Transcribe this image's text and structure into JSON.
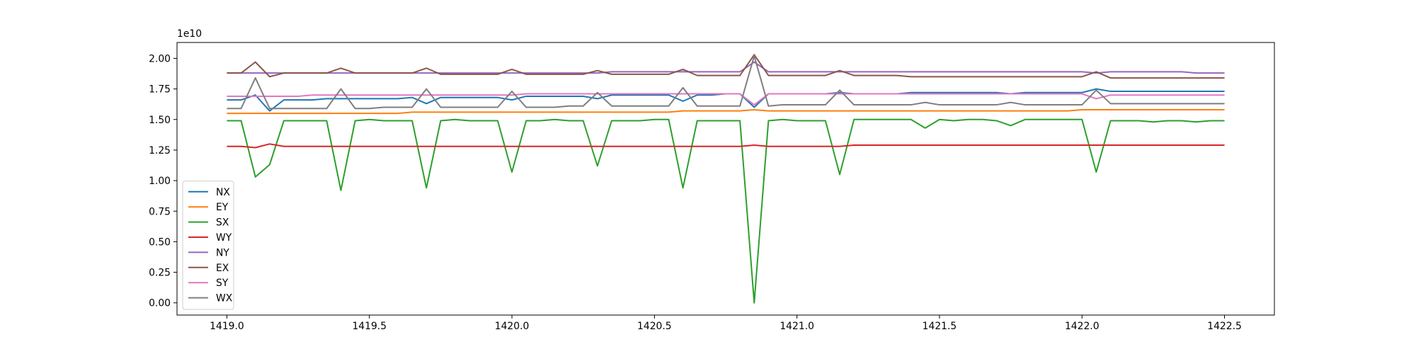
{
  "chart_data": {
    "type": "line",
    "y_offset_label": "1e10",
    "x": [
      1419,
      1419.05,
      1419.1,
      1419.15,
      1419.2,
      1419.25,
      1419.3,
      1419.35,
      1419.4,
      1419.45,
      1419.5,
      1419.55,
      1419.6,
      1419.65,
      1419.7,
      1419.75,
      1419.8,
      1419.85,
      1419.9,
      1419.95,
      1420,
      1420.05,
      1420.1,
      1420.15,
      1420.2,
      1420.25,
      1420.3,
      1420.35,
      1420.4,
      1420.45,
      1420.5,
      1420.55,
      1420.6,
      1420.65,
      1420.7,
      1420.75,
      1420.8,
      1420.85,
      1420.9,
      1420.95,
      1421,
      1421.05,
      1421.1,
      1421.15,
      1421.2,
      1421.25,
      1421.3,
      1421.35,
      1421.4,
      1421.45,
      1421.5,
      1421.55,
      1421.6,
      1421.65,
      1421.7,
      1421.75,
      1421.8,
      1421.85,
      1421.9,
      1421.95,
      1422,
      1422.05,
      1422.1,
      1422.15,
      1422.2,
      1422.25,
      1422.3,
      1422.35,
      1422.4,
      1422.45,
      1422.5
    ],
    "series": [
      {
        "name": "NX",
        "color": "#1f77b4",
        "values": [
          16600000000.0,
          16600000000.0,
          17000000000.0,
          15700000000.0,
          16600000000.0,
          16600000000.0,
          16600000000.0,
          16700000000.0,
          16700000000.0,
          16700000000.0,
          16700000000.0,
          16700000000.0,
          16700000000.0,
          16800000000.0,
          16300000000.0,
          16800000000.0,
          16800000000.0,
          16800000000.0,
          16800000000.0,
          16800000000.0,
          16600000000.0,
          16900000000.0,
          16900000000.0,
          16900000000.0,
          16900000000.0,
          16900000000.0,
          16700000000.0,
          17000000000.0,
          17000000000.0,
          17000000000.0,
          17000000000.0,
          17000000000.0,
          16500000000.0,
          17000000000.0,
          17000000000.0,
          17100000000.0,
          17100000000.0,
          16000000000.0,
          17100000000.0,
          17100000000.0,
          17100000000.0,
          17100000000.0,
          17100000000.0,
          17200000000.0,
          17100000000.0,
          17100000000.0,
          17100000000.0,
          17100000000.0,
          17200000000.0,
          17200000000.0,
          17200000000.0,
          17200000000.0,
          17200000000.0,
          17200000000.0,
          17200000000.0,
          17100000000.0,
          17200000000.0,
          17200000000.0,
          17200000000.0,
          17200000000.0,
          17200000000.0,
          17500000000.0,
          17300000000.0,
          17300000000.0,
          17300000000.0,
          17300000000.0,
          17300000000.0,
          17300000000.0,
          17300000000.0,
          17300000000.0,
          17300000000.0
        ]
      },
      {
        "name": "EY",
        "color": "#ff7f0e",
        "values": [
          15500000000.0,
          15500000000.0,
          15500000000.0,
          15500000000.0,
          15500000000.0,
          15500000000.0,
          15500000000.0,
          15500000000.0,
          15500000000.0,
          15500000000.0,
          15500000000.0,
          15500000000.0,
          15500000000.0,
          15600000000.0,
          15600000000.0,
          15600000000.0,
          15600000000.0,
          15600000000.0,
          15600000000.0,
          15600000000.0,
          15600000000.0,
          15600000000.0,
          15600000000.0,
          15600000000.0,
          15600000000.0,
          15600000000.0,
          15600000000.0,
          15600000000.0,
          15600000000.0,
          15600000000.0,
          15600000000.0,
          15600000000.0,
          15700000000.0,
          15700000000.0,
          15700000000.0,
          15700000000.0,
          15700000000.0,
          15800000000.0,
          15700000000.0,
          15700000000.0,
          15700000000.0,
          15700000000.0,
          15700000000.0,
          15700000000.0,
          15700000000.0,
          15700000000.0,
          15700000000.0,
          15700000000.0,
          15700000000.0,
          15700000000.0,
          15700000000.0,
          15700000000.0,
          15700000000.0,
          15700000000.0,
          15700000000.0,
          15700000000.0,
          15700000000.0,
          15700000000.0,
          15700000000.0,
          15700000000.0,
          15800000000.0,
          15800000000.0,
          15800000000.0,
          15800000000.0,
          15800000000.0,
          15800000000.0,
          15800000000.0,
          15800000000.0,
          15800000000.0,
          15800000000.0,
          15800000000.0
        ]
      },
      {
        "name": "SX",
        "color": "#2ca02c",
        "values": [
          14900000000.0,
          14900000000.0,
          10300000000.0,
          11300000000.0,
          14900000000.0,
          14900000000.0,
          14900000000.0,
          14900000000.0,
          9200000000.0,
          14900000000.0,
          15000000000.0,
          14900000000.0,
          14900000000.0,
          14900000000.0,
          9400000000.0,
          14900000000.0,
          15000000000.0,
          14900000000.0,
          14900000000.0,
          14900000000.0,
          10700000000.0,
          14900000000.0,
          14900000000.0,
          15000000000.0,
          14900000000.0,
          14900000000.0,
          11200000000.0,
          14900000000.0,
          14900000000.0,
          14900000000.0,
          15000000000.0,
          15000000000.0,
          9400000000.0,
          14900000000.0,
          14900000000.0,
          14900000000.0,
          14900000000.0,
          0,
          14900000000.0,
          15000000000.0,
          14900000000.0,
          14900000000.0,
          14900000000.0,
          10500000000.0,
          15000000000.0,
          15000000000.0,
          15000000000.0,
          15000000000.0,
          15000000000.0,
          14300000000.0,
          15000000000.0,
          14900000000.0,
          15000000000.0,
          15000000000.0,
          14900000000.0,
          14500000000.0,
          15000000000.0,
          15000000000.0,
          15000000000.0,
          15000000000.0,
          15000000000.0,
          10700000000.0,
          14900000000.0,
          14900000000.0,
          14900000000.0,
          14800000000.0,
          14900000000.0,
          14900000000.0,
          14800000000.0,
          14900000000.0,
          14900000000.0
        ]
      },
      {
        "name": "WY",
        "color": "#d62728",
        "values": [
          12800000000.0,
          12800000000.0,
          12700000000.0,
          13000000000.0,
          12800000000.0,
          12800000000.0,
          12800000000.0,
          12800000000.0,
          12800000000.0,
          12800000000.0,
          12800000000.0,
          12800000000.0,
          12800000000.0,
          12800000000.0,
          12800000000.0,
          12800000000.0,
          12800000000.0,
          12800000000.0,
          12800000000.0,
          12800000000.0,
          12800000000.0,
          12800000000.0,
          12800000000.0,
          12800000000.0,
          12800000000.0,
          12800000000.0,
          12800000000.0,
          12800000000.0,
          12800000000.0,
          12800000000.0,
          12800000000.0,
          12800000000.0,
          12800000000.0,
          12800000000.0,
          12800000000.0,
          12800000000.0,
          12800000000.0,
          12900000000.0,
          12800000000.0,
          12800000000.0,
          12800000000.0,
          12800000000.0,
          12800000000.0,
          12800000000.0,
          12900000000.0,
          12900000000.0,
          12900000000.0,
          12900000000.0,
          12900000000.0,
          12900000000.0,
          12900000000.0,
          12900000000.0,
          12900000000.0,
          12900000000.0,
          12900000000.0,
          12900000000.0,
          12900000000.0,
          12900000000.0,
          12900000000.0,
          12900000000.0,
          12900000000.0,
          12900000000.0,
          12900000000.0,
          12900000000.0,
          12900000000.0,
          12900000000.0,
          12900000000.0,
          12900000000.0,
          12900000000.0,
          12900000000.0,
          12900000000.0
        ]
      },
      {
        "name": "NY",
        "color": "#9467bd",
        "values": [
          18800000000.0,
          18800000000.0,
          18800000000.0,
          18800000000.0,
          18800000000.0,
          18800000000.0,
          18800000000.0,
          18800000000.0,
          18800000000.0,
          18800000000.0,
          18800000000.0,
          18800000000.0,
          18800000000.0,
          18800000000.0,
          18800000000.0,
          18800000000.0,
          18800000000.0,
          18800000000.0,
          18800000000.0,
          18800000000.0,
          18800000000.0,
          18800000000.0,
          18800000000.0,
          18800000000.0,
          18800000000.0,
          18800000000.0,
          18800000000.0,
          18900000000.0,
          18900000000.0,
          18900000000.0,
          18900000000.0,
          18900000000.0,
          18900000000.0,
          18900000000.0,
          18900000000.0,
          18900000000.0,
          18900000000.0,
          19700000000.0,
          18900000000.0,
          18900000000.0,
          18900000000.0,
          18900000000.0,
          18900000000.0,
          18900000000.0,
          18900000000.0,
          18900000000.0,
          18900000000.0,
          18900000000.0,
          18900000000.0,
          18900000000.0,
          18900000000.0,
          18900000000.0,
          18900000000.0,
          18900000000.0,
          18900000000.0,
          18900000000.0,
          18900000000.0,
          18900000000.0,
          18900000000.0,
          18900000000.0,
          18900000000.0,
          18800000000.0,
          18900000000.0,
          18900000000.0,
          18900000000.0,
          18900000000.0,
          18900000000.0,
          18900000000.0,
          18800000000.0,
          18800000000.0,
          18800000000.0
        ]
      },
      {
        "name": "EX",
        "color": "#8c564b",
        "values": [
          18800000000.0,
          18800000000.0,
          19700000000.0,
          18500000000.0,
          18800000000.0,
          18800000000.0,
          18800000000.0,
          18800000000.0,
          19200000000.0,
          18800000000.0,
          18800000000.0,
          18800000000.0,
          18800000000.0,
          18800000000.0,
          19200000000.0,
          18700000000.0,
          18700000000.0,
          18700000000.0,
          18700000000.0,
          18700000000.0,
          19100000000.0,
          18700000000.0,
          18700000000.0,
          18700000000.0,
          18700000000.0,
          18700000000.0,
          19000000000.0,
          18700000000.0,
          18700000000.0,
          18700000000.0,
          18700000000.0,
          18700000000.0,
          19100000000.0,
          18600000000.0,
          18600000000.0,
          18600000000.0,
          18600000000.0,
          20300000000.0,
          18600000000.0,
          18600000000.0,
          18600000000.0,
          18600000000.0,
          18600000000.0,
          19000000000.0,
          18600000000.0,
          18600000000.0,
          18600000000.0,
          18600000000.0,
          18500000000.0,
          18500000000.0,
          18500000000.0,
          18500000000.0,
          18500000000.0,
          18500000000.0,
          18500000000.0,
          18500000000.0,
          18500000000.0,
          18500000000.0,
          18500000000.0,
          18500000000.0,
          18500000000.0,
          18900000000.0,
          18400000000.0,
          18400000000.0,
          18400000000.0,
          18400000000.0,
          18400000000.0,
          18400000000.0,
          18400000000.0,
          18400000000.0,
          18400000000.0
        ]
      },
      {
        "name": "SY",
        "color": "#e377c2",
        "values": [
          16900000000.0,
          16900000000.0,
          16900000000.0,
          16900000000.0,
          16900000000.0,
          16900000000.0,
          17000000000.0,
          17000000000.0,
          17000000000.0,
          17000000000.0,
          17000000000.0,
          17000000000.0,
          17000000000.0,
          17000000000.0,
          17000000000.0,
          17000000000.0,
          17000000000.0,
          17000000000.0,
          17000000000.0,
          17000000000.0,
          17000000000.0,
          17100000000.0,
          17100000000.0,
          17100000000.0,
          17100000000.0,
          17100000000.0,
          17100000000.0,
          17100000000.0,
          17100000000.0,
          17100000000.0,
          17100000000.0,
          17100000000.0,
          17100000000.0,
          17100000000.0,
          17100000000.0,
          17100000000.0,
          17100000000.0,
          16200000000.0,
          17100000000.0,
          17100000000.0,
          17100000000.0,
          17100000000.0,
          17100000000.0,
          17100000000.0,
          17100000000.0,
          17100000000.0,
          17100000000.0,
          17100000000.0,
          17100000000.0,
          17100000000.0,
          17100000000.0,
          17100000000.0,
          17100000000.0,
          17100000000.0,
          17100000000.0,
          17100000000.0,
          17100000000.0,
          17100000000.0,
          17100000000.0,
          17100000000.0,
          17100000000.0,
          16700000000.0,
          17000000000.0,
          17000000000.0,
          17000000000.0,
          17000000000.0,
          17000000000.0,
          17000000000.0,
          17000000000.0,
          17000000000.0,
          17000000000.0
        ]
      },
      {
        "name": "WX",
        "color": "#7f7f7f",
        "values": [
          15900000000.0,
          15900000000.0,
          18400000000.0,
          15900000000.0,
          15900000000.0,
          15900000000.0,
          15900000000.0,
          15900000000.0,
          17500000000.0,
          15900000000.0,
          15900000000.0,
          16000000000.0,
          16000000000.0,
          16000000000.0,
          17500000000.0,
          16000000000.0,
          16000000000.0,
          16000000000.0,
          16000000000.0,
          16000000000.0,
          17300000000.0,
          16000000000.0,
          16000000000.0,
          16000000000.0,
          16100000000.0,
          16100000000.0,
          17200000000.0,
          16100000000.0,
          16100000000.0,
          16100000000.0,
          16100000000.0,
          16100000000.0,
          17600000000.0,
          16100000000.0,
          16100000000.0,
          16100000000.0,
          16100000000.0,
          20200000000.0,
          16100000000.0,
          16200000000.0,
          16200000000.0,
          16200000000.0,
          16200000000.0,
          17400000000.0,
          16200000000.0,
          16200000000.0,
          16200000000.0,
          16200000000.0,
          16200000000.0,
          16400000000.0,
          16200000000.0,
          16200000000.0,
          16200000000.0,
          16200000000.0,
          16200000000.0,
          16400000000.0,
          16200000000.0,
          16200000000.0,
          16200000000.0,
          16200000000.0,
          16200000000.0,
          17400000000.0,
          16300000000.0,
          16300000000.0,
          16300000000.0,
          16300000000.0,
          16300000000.0,
          16300000000.0,
          16300000000.0,
          16300000000.0,
          16300000000.0
        ]
      }
    ],
    "xlim": [
      1418.825,
      1422.675
    ],
    "ylim": [
      -1000000000.0,
      21300000000.0
    ],
    "xticks": [
      {
        "value": 1419,
        "label": "1419.0"
      },
      1419.5,
      {
        "value": 1420,
        "label": "1420.0"
      },
      1420.5,
      {
        "value": 1421,
        "label": "1421.0"
      },
      1421.5,
      {
        "value": 1422,
        "label": "1422.0"
      },
      1422.5
    ],
    "yticks": [
      {
        "value": 0,
        "label": "0.00"
      },
      {
        "value": 2500000000.0,
        "label": "0.25"
      },
      {
        "value": 5000000000.0,
        "label": "0.50"
      },
      {
        "value": 7500000000.0,
        "label": "0.75"
      },
      {
        "value": 10000000000.0,
        "label": "1.00"
      },
      {
        "value": 12500000000.0,
        "label": "1.25"
      },
      {
        "value": 15000000000.0,
        "label": "1.50"
      },
      {
        "value": 17500000000.0,
        "label": "1.75"
      },
      {
        "value": 20000000000.0,
        "label": "2.00"
      }
    ],
    "grid": false,
    "legend": "lower left"
  }
}
